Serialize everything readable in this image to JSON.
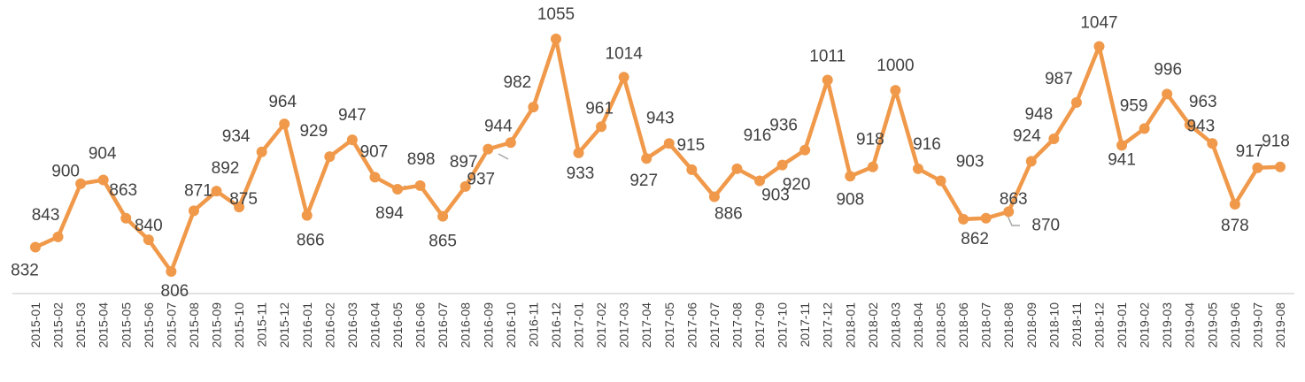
{
  "chart_data": {
    "type": "line",
    "title": "",
    "xlabel": "",
    "ylabel": "",
    "ylim": [
      770,
      1070
    ],
    "grid": false,
    "legend": "none",
    "colors": {
      "line": "#F0994A",
      "axis": "#D9D9D9",
      "text": "#404040",
      "leader": "#A6A6A6"
    },
    "categories": [
      "2015-01",
      "2015-02",
      "2015-03",
      "2015-04",
      "2015-05",
      "2015-06",
      "2015-07",
      "2015-08",
      "2015-09",
      "2015-10",
      "2015-11",
      "2015-12",
      "2016-01",
      "2016-02",
      "2016-03",
      "2016-04",
      "2016-05",
      "2016-06",
      "2016-07",
      "2016-08",
      "2016-09",
      "2016-10",
      "2016-11",
      "2016-12",
      "2017-01",
      "2017-02",
      "2017-03",
      "2017-04",
      "2017-05",
      "2017-06",
      "2017-07",
      "2017-08",
      "2017-09",
      "2017-10",
      "2017-11",
      "2017-12",
      "2018-01",
      "2018-02",
      "2018-03",
      "2018-04",
      "2018-05",
      "2018-06",
      "2018-07",
      "2018-08",
      "2018-09",
      "2018-10",
      "2018-11",
      "2018-12",
      "2019-01",
      "2019-02",
      "2019-03",
      "2019-04",
      "2019-05",
      "2019-06",
      "2019-07",
      "2019-08"
    ],
    "series": [
      {
        "values": [
          832,
          843,
          900,
          904,
          863,
          840,
          806,
          871,
          892,
          875,
          934,
          964,
          866,
          929,
          947,
          907,
          894,
          898,
          865,
          897,
          937,
          944,
          982,
          1055,
          933,
          961,
          1014,
          927,
          943,
          915,
          886,
          916,
          903,
          920,
          936,
          1011,
          908,
          918,
          1000,
          916,
          903,
          862,
          863,
          870,
          924,
          948,
          987,
          1047,
          941,
          959,
          996,
          963,
          943,
          878,
          917,
          918
        ]
      }
    ]
  }
}
